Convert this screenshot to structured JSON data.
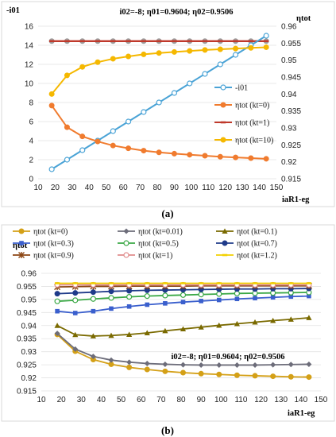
{
  "chart_data": [
    {
      "type": "line",
      "annotation": "i02=-8; η01=0.9604; η02=0.9506",
      "ylabel_left": "-i01",
      "ylabel_right": "ηtot",
      "xlabel": "iaR1-eg",
      "caption": "(a)",
      "xlim": [
        10,
        150
      ],
      "xticks": [
        10,
        20,
        30,
        40,
        50,
        60,
        70,
        80,
        90,
        100,
        110,
        120,
        130,
        140,
        150
      ],
      "ylim_left": [
        0,
        16
      ],
      "yticks_left": [
        0,
        2,
        4,
        6,
        8,
        10,
        12,
        14,
        16
      ],
      "ylim_right": [
        0.915,
        0.96
      ],
      "yticks_right": [
        "0.915",
        "0.92",
        "0.925",
        "0.93",
        "0.935",
        "0.94",
        "0.945",
        "0.95",
        "0.955",
        "0.96"
      ],
      "x": [
        18,
        27,
        36,
        45,
        54,
        63,
        72,
        81,
        90,
        99,
        108,
        117,
        126,
        135,
        144
      ],
      "series": [
        {
          "name": "-i01",
          "axis": "left",
          "color": "#4aa3d6",
          "marker": "circle-open",
          "values": [
            1,
            2,
            3,
            4,
            5,
            6,
            7,
            8,
            9,
            10,
            11,
            12,
            13,
            14,
            15
          ]
        },
        {
          "name": "ηtot (kt=0)",
          "axis": "right",
          "color": "#f07b2e",
          "marker": "circle",
          "values": [
            0.9366,
            0.9302,
            0.9275,
            0.926,
            0.9248,
            0.924,
            0.9233,
            0.9228,
            0.9224,
            0.9221,
            0.9218,
            0.9215,
            0.9213,
            0.9211,
            0.9209
          ]
        },
        {
          "name": "ηtot (kt=1)",
          "axis": "right",
          "color": "#c0392b",
          "marker": "dash",
          "values": [
            0.9556,
            0.9556,
            0.9556,
            0.9556,
            0.9556,
            0.9556,
            0.9556,
            0.9556,
            0.9556,
            0.9556,
            0.9556,
            0.9556,
            0.9556,
            0.9556,
            0.9556
          ]
        },
        {
          "name": "ηtot (kt=10)",
          "axis": "right",
          "color": "#f5b800",
          "marker": "circle",
          "values": [
            0.94,
            0.9455,
            0.948,
            0.9494,
            0.9504,
            0.9511,
            0.9517,
            0.9521,
            0.9524,
            0.9527,
            0.953,
            0.9532,
            0.9534,
            0.9536,
            0.9538
          ]
        }
      ],
      "series_grey_overlay": {
        "color": "#9e9e9e",
        "value": 0.9556
      }
    },
    {
      "type": "line",
      "annotation": "i02=-8; η01=0.9604; η02=0.9506",
      "ylabel": "ηtot",
      "xlabel": "iaR1-eg",
      "caption": "(b)",
      "xlim": [
        10,
        150
      ],
      "xticks": [
        10,
        20,
        30,
        40,
        50,
        60,
        70,
        80,
        90,
        100,
        110,
        120,
        130,
        140,
        150
      ],
      "ylim": [
        0.915,
        0.96
      ],
      "yticks": [
        "0.915",
        "0.92",
        "0.925",
        "0.93",
        "0.935",
        "0.94",
        "0.945",
        "0.95",
        "0.955",
        "0.96"
      ],
      "x": [
        18,
        27,
        36,
        45,
        54,
        63,
        72,
        81,
        90,
        99,
        108,
        117,
        126,
        135,
        144
      ],
      "series": [
        {
          "name": "ηtot (kt=0)",
          "color": "#d4a017",
          "marker": "circle",
          "values": [
            0.9366,
            0.9302,
            0.927,
            0.9252,
            0.924,
            0.9232,
            0.9225,
            0.922,
            0.9216,
            0.9213,
            0.921,
            0.9208,
            0.9206,
            0.9204,
            0.9203
          ]
        },
        {
          "name": "ηtot (kt=0.01)",
          "color": "#6d6d7a",
          "marker": "diamond",
          "values": [
            0.937,
            0.931,
            0.9282,
            0.9268,
            0.926,
            0.9255,
            0.9252,
            0.925,
            0.9249,
            0.9249,
            0.9249,
            0.9249,
            0.925,
            0.9251,
            0.9252
          ]
        },
        {
          "name": "ηtot (kt=0.1)",
          "color": "#7a6a00",
          "marker": "triangle",
          "values": [
            0.94,
            0.9365,
            0.936,
            0.9362,
            0.9366,
            0.9372,
            0.938,
            0.9387,
            0.9394,
            0.9401,
            0.9407,
            0.9413,
            0.9419,
            0.9424,
            0.943
          ]
        },
        {
          "name": "ηtot (kt=0.3)",
          "color": "#3a5fcd",
          "marker": "square",
          "values": [
            0.9455,
            0.9448,
            0.9455,
            0.9465,
            0.9473,
            0.948,
            0.9485,
            0.949,
            0.9494,
            0.9498,
            0.9502,
            0.9505,
            0.9508,
            0.9511,
            0.9513
          ]
        },
        {
          "name": "ηtot (kt=0.5)",
          "color": "#3aa845",
          "marker": "circle-open",
          "values": [
            0.9493,
            0.9497,
            0.9502,
            0.9506,
            0.951,
            0.9513,
            0.9515,
            0.9517,
            0.9519,
            0.9521,
            0.9523,
            0.9524,
            0.9525,
            0.9526,
            0.9527
          ]
        },
        {
          "name": "ηtot (kt=0.7)",
          "color": "#1f3b8a",
          "marker": "circle",
          "values": [
            0.9522,
            0.9525,
            0.9528,
            0.9531,
            0.9533,
            0.9535,
            0.9536,
            0.9537,
            0.9538,
            0.9539,
            0.954,
            0.954,
            0.9541,
            0.9541,
            0.9542
          ]
        },
        {
          "name": "ηtot (kt=0.9)",
          "color": "#8b4513",
          "marker": "star",
          "values": [
            0.9548,
            0.9549,
            0.955,
            0.955,
            0.9551,
            0.9551,
            0.9551,
            0.9551,
            0.9552,
            0.9552,
            0.9552,
            0.9552,
            0.9552,
            0.9552,
            0.9552
          ]
        },
        {
          "name": "ηtot (kt=1)",
          "color": "#e08c8c",
          "marker": "circle-open",
          "values": [
            0.9556,
            0.9556,
            0.9556,
            0.9556,
            0.9556,
            0.9556,
            0.9556,
            0.9556,
            0.9556,
            0.9556,
            0.9556,
            0.9556,
            0.9556,
            0.9556,
            0.9556
          ]
        },
        {
          "name": "ηtot (kt=1.2)",
          "color": "#f2d100",
          "marker": "dash",
          "values": [
            0.9562,
            0.9562,
            0.9562,
            0.9562,
            0.9562,
            0.9562,
            0.9562,
            0.9562,
            0.9562,
            0.9562,
            0.9562,
            0.9562,
            0.9562,
            0.9562,
            0.9562
          ]
        }
      ]
    }
  ]
}
